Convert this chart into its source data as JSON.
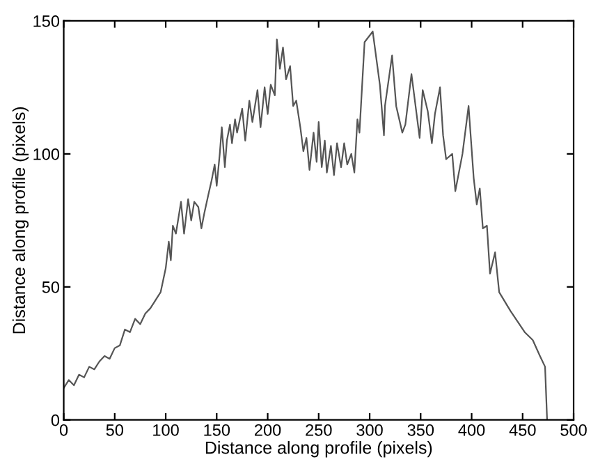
{
  "chart_data": {
    "type": "line",
    "xlabel": "Distance along profile (pixels)",
    "ylabel": "Distance along profile (pixels)",
    "xlim": [
      0,
      500
    ],
    "ylim": [
      0,
      150
    ],
    "xticks": [
      0,
      50,
      100,
      150,
      200,
      250,
      300,
      350,
      400,
      450,
      500
    ],
    "yticks": [
      0,
      50,
      100,
      150
    ],
    "grid": false,
    "legend": false,
    "series": [
      {
        "color": "#555555",
        "x": [
          0,
          5,
          10,
          15,
          20,
          25,
          30,
          35,
          40,
          45,
          50,
          55,
          60,
          65,
          70,
          75,
          80,
          85,
          90,
          95,
          100,
          103,
          105,
          107,
          110,
          115,
          118,
          122,
          125,
          128,
          132,
          135,
          138,
          142,
          145,
          148,
          150,
          153,
          155,
          158,
          160,
          163,
          165,
          168,
          170,
          175,
          178,
          182,
          185,
          190,
          193,
          197,
          200,
          203,
          207,
          209,
          212,
          215,
          218,
          222,
          225,
          228,
          232,
          235,
          238,
          241,
          245,
          248,
          250,
          253,
          256,
          258,
          262,
          265,
          268,
          272,
          275,
          278,
          282,
          285,
          288,
          290,
          295,
          303,
          310,
          314,
          315,
          322,
          326,
          332,
          335,
          341,
          345,
          349,
          352,
          357,
          361,
          364,
          369,
          372,
          375,
          381,
          384,
          391,
          397,
          402,
          405,
          408,
          411,
          415,
          418,
          423,
          427,
          438,
          452,
          460,
          467,
          472,
          474
        ],
        "values": [
          12,
          15,
          13,
          17,
          16,
          20,
          19,
          22,
          24,
          23,
          27,
          28,
          34,
          33,
          38,
          36,
          40,
          42,
          45,
          48,
          57,
          67,
          60,
          73,
          70,
          82,
          70,
          83,
          75,
          82,
          80,
          72,
          78,
          85,
          90,
          96,
          88,
          100,
          110,
          95,
          105,
          111,
          104,
          113,
          108,
          117,
          105,
          120,
          112,
          124,
          110,
          125,
          115,
          126,
          122,
          143,
          132,
          140,
          128,
          133,
          118,
          120,
          110,
          101,
          106,
          94,
          108,
          97,
          112,
          95,
          105,
          93,
          103,
          92,
          104,
          95,
          104,
          96,
          100,
          93,
          113,
          108,
          142,
          146,
          126,
          107,
          118,
          137,
          118,
          108,
          111,
          130,
          118,
          106,
          124,
          116,
          104,
          115,
          125,
          107,
          98,
          100,
          86,
          100,
          118,
          91,
          81,
          87,
          72,
          73,
          55,
          63,
          48,
          41,
          33,
          30,
          24,
          20,
          0
        ]
      }
    ]
  }
}
